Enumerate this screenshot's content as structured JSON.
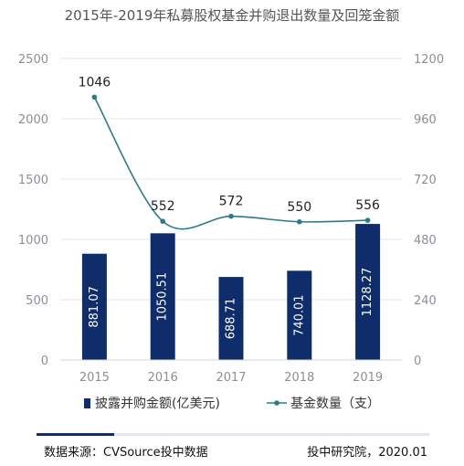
{
  "chart_data": {
    "type": "bar+line",
    "title": "2015年-2019年私募股权基金并购退出数量及回笼金额",
    "categories": [
      "2015",
      "2016",
      "2017",
      "2018",
      "2019"
    ],
    "series": [
      {
        "name": "披露并购金额(亿美元)",
        "kind": "bar",
        "axis": "left",
        "values": [
          881.07,
          1050.51,
          688.71,
          740.01,
          1128.27
        ],
        "labels": [
          "881.07",
          "1050.51",
          "688.71",
          "740.01",
          "1128.27"
        ],
        "color": "#0f2d6b"
      },
      {
        "name": "基金数量（支）",
        "kind": "line",
        "axis": "right",
        "values": [
          1046,
          552,
          572,
          550,
          556
        ],
        "labels": [
          "1046",
          "552",
          "572",
          "550",
          "556"
        ],
        "color": "#2b7a8c"
      }
    ],
    "y_left": {
      "min": 0,
      "max": 2500,
      "ticks": [
        "0",
        "500",
        "1000",
        "1500",
        "2000",
        "2500"
      ]
    },
    "y_right": {
      "min": 0,
      "max": 1200,
      "ticks": [
        "0",
        "240",
        "480",
        "720",
        "960",
        "1200"
      ]
    },
    "grid": true,
    "legend": "bottom"
  },
  "footer": {
    "source": "数据来源：CVSource投中数据",
    "credit": "投中研究院，2020.01"
  }
}
